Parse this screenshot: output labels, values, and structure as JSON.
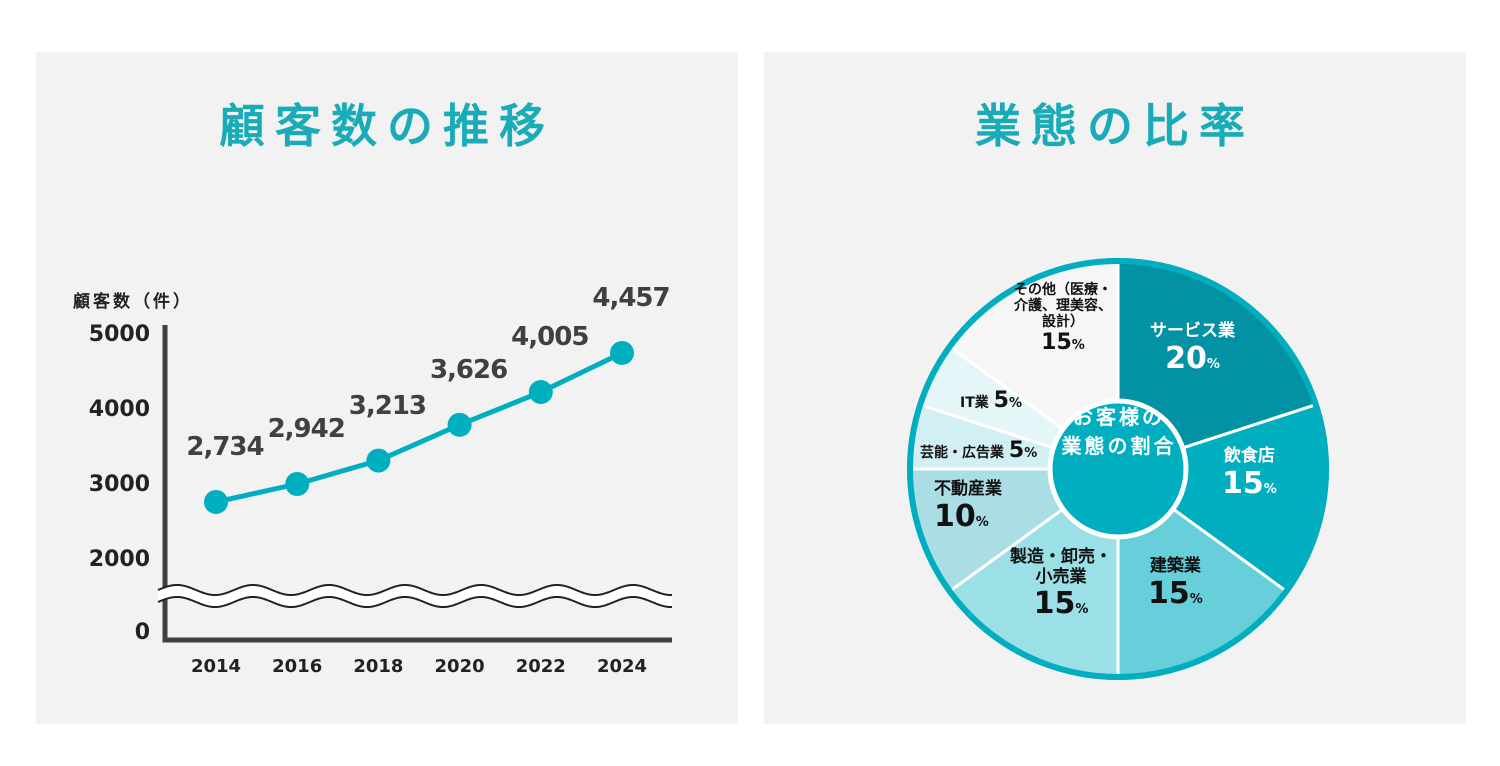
{
  "left_panel": {
    "title": "顧客数の推移"
  },
  "right_panel": {
    "title": "業態の比率"
  },
  "chart_data": [
    {
      "type": "line",
      "title": "顧客数の推移",
      "ylabel": "顧客数（件）",
      "xlabel": "",
      "x": [
        "2014",
        "2016",
        "2018",
        "2020",
        "2022",
        "2024"
      ],
      "values": [
        2734,
        2942,
        3213,
        3626,
        4005,
        4457
      ],
      "value_labels": [
        "2,734",
        "2,942",
        "3,213",
        "3,626",
        "4,005",
        "4,457"
      ],
      "yticks": [
        "5000",
        "4000",
        "3000",
        "2000",
        "0"
      ],
      "ylim": [
        0,
        5000
      ],
      "axis_break": true,
      "grid": false,
      "color": "#00afbf"
    },
    {
      "type": "pie",
      "title": "業態の比率",
      "center_label": [
        "お客様の",
        "業態の割合"
      ],
      "percent_sign": "%",
      "slices": [
        {
          "name": "サービス業",
          "value": 20,
          "color": "#0392a3"
        },
        {
          "name": "飲食店",
          "value": 15,
          "color": "#00aec0"
        },
        {
          "name": "建築業",
          "value": 15,
          "color": "#66cfd9"
        },
        {
          "name": "製造・卸売・小売業",
          "value": 15,
          "color": "#9ae0e6"
        },
        {
          "name": "不動産業",
          "value": 10,
          "color": "#abdde5"
        },
        {
          "name": "芸能・広告業",
          "value": 5,
          "color": "#d2eff3"
        },
        {
          "name": "IT業",
          "value": 5,
          "color": "#e5f6f8"
        },
        {
          "name": "その他（医療・介護、理美容、設計）",
          "value": 15,
          "color": "#f6f6f6"
        }
      ],
      "ring_color": "#00aec0"
    }
  ]
}
